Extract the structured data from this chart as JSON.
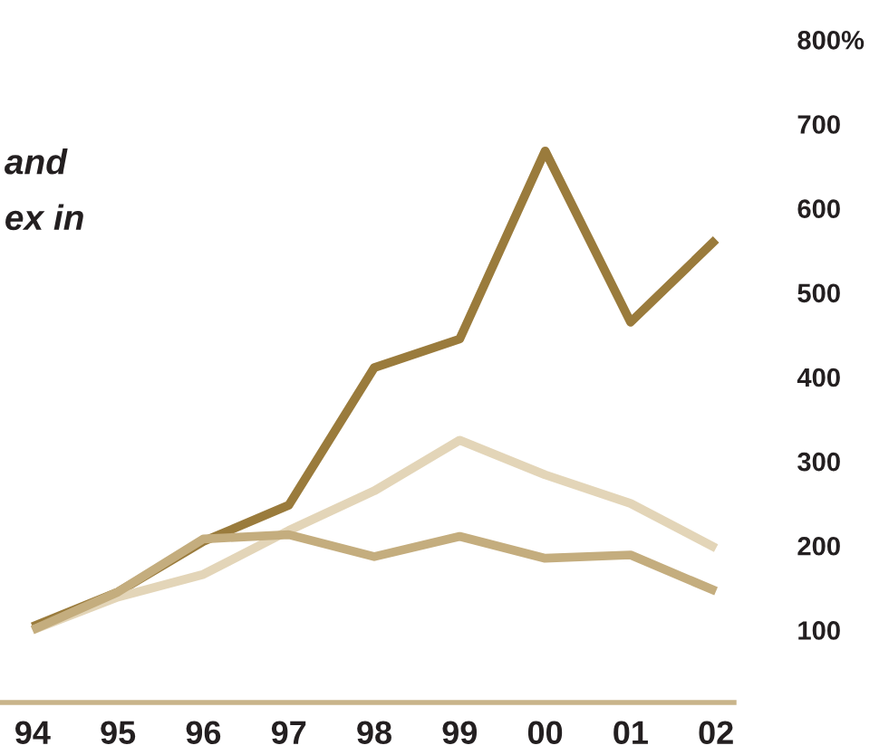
{
  "chart_data": {
    "type": "line",
    "title": "and\nex in",
    "categories": [
      "94",
      "95",
      "96",
      "97",
      "98",
      "99",
      "00",
      "01",
      "02"
    ],
    "series": [
      {
        "color": "#9a7b3c",
        "values": [
          104,
          145,
          205,
          248,
          411,
          445,
          668,
          465,
          563
        ]
      },
      {
        "color": "#e3d5b8",
        "values": [
          100,
          139,
          166,
          218,
          265,
          325,
          284,
          250,
          197
        ]
      },
      {
        "color": "#c4ad7e",
        "values": [
          100,
          145,
          208,
          213,
          187,
          211,
          185,
          189,
          146
        ]
      }
    ],
    "ylim": [
      14,
      800
    ],
    "yticks": [
      100,
      200,
      300,
      400,
      500,
      600,
      700,
      {
        "value": 800,
        "label": "800%"
      }
    ],
    "grid": false,
    "marker": "none",
    "line_style": "solid"
  }
}
